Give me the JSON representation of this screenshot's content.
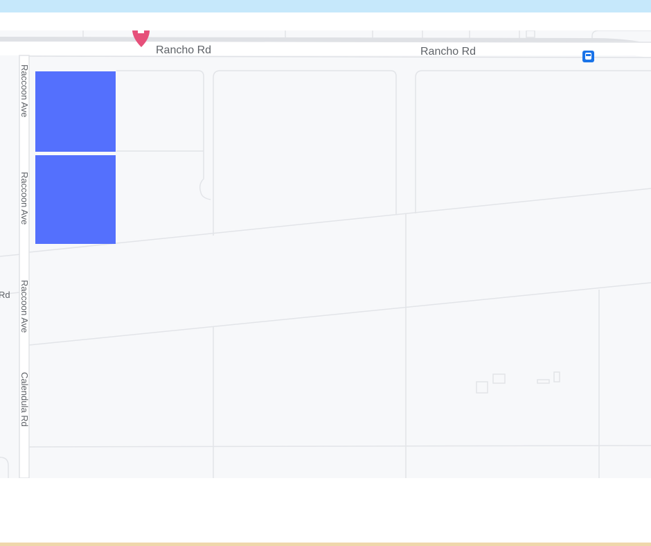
{
  "map": {
    "roads": {
      "rancho_rd_1": "Rancho Rd",
      "rancho_rd_2": "Rancho Rd",
      "raccoon_ave_1": "Raccoon Ave",
      "raccoon_ave_2": "Raccoon Ave",
      "raccoon_ave_3": "Raccoon Ave",
      "calendula_rd": "Calendula Rd",
      "partial_rd": "Rd"
    },
    "highlight_color": "#5470fd",
    "marker_color": "#e6507a",
    "transit_icon_color": "#1a73e8",
    "icons": [
      "location-pin-icon",
      "bus-stop-icon"
    ]
  }
}
